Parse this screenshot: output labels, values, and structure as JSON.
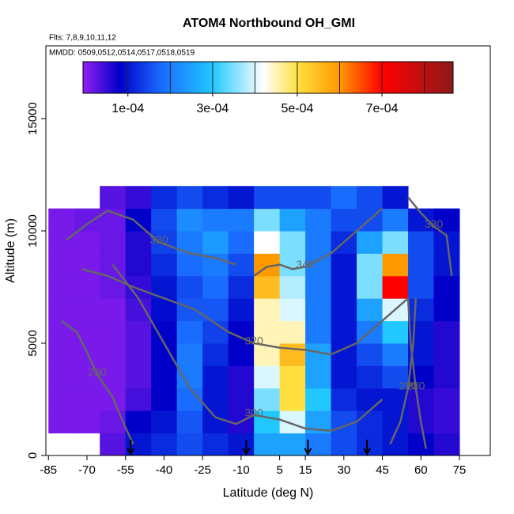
{
  "chart_data": {
    "type": "heatmap",
    "title": "ATOM4 Northbound OH_GMI",
    "subtitle": "Flts: 7,8,9,10,11,12",
    "annotation": "MMDD: 0509,0512,0514,0517,0518,0519",
    "x_label": "Latitude (deg N)",
    "y_label": "Altitude (m)",
    "xlim": [
      -86,
      87
    ],
    "ylim": [
      0,
      18240
    ],
    "xticks": [
      -85,
      -70,
      -55,
      -40,
      -25,
      -10,
      5,
      15,
      30,
      45,
      60,
      75
    ],
    "yticks": [
      0,
      5000,
      10000,
      15000
    ],
    "x_edges": [
      -85,
      -75,
      -65,
      -55,
      -45,
      -35,
      -25,
      -15,
      -5,
      5,
      15,
      25,
      35,
      45,
      55,
      65,
      75
    ],
    "y_edges": [
      0,
      1000,
      2000,
      3000,
      4000,
      5000,
      6000,
      7000,
      8000,
      9000,
      10000,
      11000,
      12000
    ],
    "values": [
      [
        null,
        1e-05,
        1e-05,
        1e-05,
        1e-05,
        1e-05,
        1e-05,
        1e-05,
        1e-05,
        1e-05,
        1e-05,
        null
      ],
      [
        null,
        1e-05,
        1e-05,
        1e-05,
        1e-05,
        1e-05,
        1e-05,
        1e-05,
        1e-05,
        1e-05,
        2e-05,
        null
      ],
      [
        3e-05,
        2e-05,
        1e-05,
        1e-05,
        1e-05,
        1e-05,
        1e-05,
        2e-05,
        2e-05,
        2e-05,
        2e-05,
        3e-05
      ],
      [
        0.0001,
        8e-05,
        4e-05,
        3e-05,
        3e-05,
        3e-05,
        4e-05,
        5e-05,
        6e-05,
        6e-05,
        8e-05,
        5e-05
      ],
      [
        0.00012,
        0.0001,
        8e-05,
        8e-05,
        8e-05,
        8e-05,
        9e-05,
        0.0001,
        0.00012,
        0.00014,
        0.00015,
        0.00012
      ],
      [
        0.00015,
        0.00016,
        0.00018,
        0.0002,
        0.0002,
        0.00018,
        0.00016,
        0.00015,
        0.00018,
        0.0002,
        0.00022,
        0.00015
      ],
      [
        0.00012,
        0.0001,
        0.0001,
        0.0001,
        0.00012,
        0.00014,
        0.00016,
        0.00018,
        0.0002,
        0.00024,
        0.0002,
        0.00012
      ],
      [
        0.0001,
        6e-05,
        6e-05,
        6e-05,
        8e-05,
        8e-05,
        0.0001,
        0.00012,
        0.00015,
        0.00018,
        0.0002,
        0.0001
      ],
      [
        0.00025,
        0.0003,
        0.00035,
        0.0004,
        0.00045,
        0.00045,
        0.00045,
        0.00055,
        0.0006,
        0.00042,
        0.00035,
        0.00015
      ],
      [
        0.00025,
        0.0004,
        0.0005,
        0.0005,
        0.00055,
        0.00045,
        0.0004,
        0.00038,
        0.00035,
        0.00035,
        0.00025,
        0.00015
      ],
      [
        0.0002,
        0.00025,
        0.0003,
        0.00025,
        0.00025,
        0.0002,
        0.0002,
        0.0002,
        0.0002,
        0.0002,
        0.0002,
        0.00015
      ],
      [
        0.00015,
        0.00015,
        0.00012,
        0.0001,
        0.0001,
        0.0001,
        0.0001,
        0.0001,
        0.0001,
        0.00012,
        0.00015,
        0.00018
      ],
      [
        0.00012,
        0.00012,
        0.0001,
        0.00012,
        0.00015,
        0.0002,
        0.00025,
        0.00035,
        0.00035,
        0.00025,
        0.00015,
        0.00015
      ],
      [
        0.0001,
        0.0001,
        0.0001,
        0.00015,
        0.0002,
        0.0003,
        0.0004,
        0.0007,
        0.0006,
        0.00035,
        0.0002,
        0.0001
      ],
      [
        8e-05,
        6e-05,
        6e-05,
        8e-05,
        0.0001,
        0.0001,
        0.00012,
        0.00015,
        0.00015,
        0.00015,
        0.0001,
        null
      ],
      [
        6e-05,
        5e-05,
        5e-05,
        6e-05,
        6e-05,
        6e-05,
        8e-05,
        8e-05,
        0.0001,
        0.0001,
        8e-05,
        null
      ]
    ],
    "colormap": [
      [
        0,
        "#8a1ef0"
      ],
      [
        8e-05,
        "#0000c8"
      ],
      [
        0.00018,
        "#1a6cff"
      ],
      [
        0.0003,
        "#20c8ff"
      ],
      [
        0.00042,
        "#ffffff"
      ],
      [
        0.0005,
        "#ffe040"
      ],
      [
        0.0006,
        "#ff9900"
      ],
      [
        0.0007,
        "#ff0000"
      ],
      [
        0.000868,
        "#8b1a1a"
      ]
    ],
    "cbar_lim": [
      -6e-06,
      0.000868
    ],
    "cbar_ticks": [
      {
        "value": 0.0001,
        "label": "1e-04"
      },
      {
        "value": 0.0003,
        "label": "3e-04"
      },
      {
        "value": 0.0005,
        "label": "5e-04"
      },
      {
        "value": 0.0007,
        "label": "7e-04"
      }
    ],
    "cbar_dividers": [
      0.0001,
      0.0002,
      0.0003,
      0.0004,
      0.0005,
      0.0006,
      0.0007,
      0.0008
    ],
    "contour_color": "#666666",
    "contours": [
      {
        "level": 280,
        "lat": [
          -80,
          -74,
          -70,
          -66,
          -60,
          -56,
          -52
        ],
        "alt": [
          6000,
          5500,
          4600,
          3600,
          2600,
          1500,
          500
        ]
      },
      {
        "level": 300,
        "lat": [
          -60,
          -50,
          -40,
          -30,
          -20,
          -12,
          -5,
          5,
          15,
          25,
          35,
          45
        ],
        "alt": [
          8500,
          7000,
          5000,
          3000,
          1700,
          1400,
          1800,
          1600,
          1200,
          1100,
          1500,
          2500
        ]
      },
      {
        "level": 320,
        "lat": [
          -72,
          -62,
          -52,
          -40,
          -28,
          -15,
          -5,
          5,
          15,
          25,
          35,
          45,
          55
        ],
        "alt": [
          8300,
          8000,
          7500,
          7000,
          6500,
          5500,
          5000,
          4800,
          4700,
          4500,
          5000,
          6000,
          7000
        ]
      },
      {
        "level": 330,
        "lat": [
          -78,
          -70,
          -62,
          -52,
          -42,
          -30,
          -20,
          -12
        ],
        "alt": [
          9600,
          10300,
          10900,
          10500,
          9500,
          9000,
          8800,
          8500
        ]
      },
      {
        "level": 340,
        "lat": [
          -5,
          0,
          5,
          10,
          15,
          25,
          35,
          45
        ],
        "alt": [
          8000,
          8400,
          8500,
          8300,
          8400,
          9000,
          10000,
          11000
        ]
      },
      {
        "level": 280,
        "lat": [
          62,
          60,
          58,
          56,
          55
        ],
        "alt": [
          300,
          1500,
          3000,
          5000,
          7000
        ]
      },
      {
        "level": 290,
        "lat": [
          48,
          52,
          55,
          57,
          58
        ],
        "alt": [
          500,
          1500,
          3000,
          5000,
          7000
        ]
      },
      {
        "level": 330,
        "lat": [
          55,
          60,
          65,
          70,
          72
        ],
        "alt": [
          11500,
          10800,
          10200,
          9800,
          8000
        ]
      }
    ],
    "arrows_lat": [
      -53,
      -8,
      16,
      39
    ]
  }
}
